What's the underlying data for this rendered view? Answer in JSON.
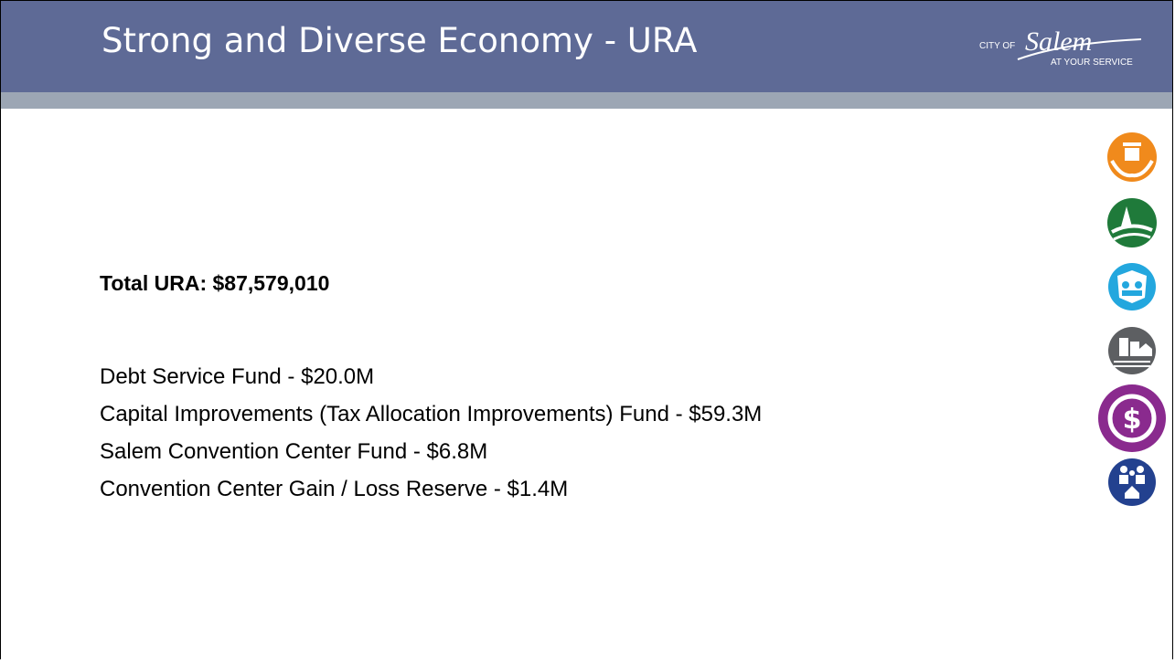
{
  "header": {
    "title": "Strong and Diverse Economy - URA"
  },
  "logo": {
    "prefix": "CITY OF",
    "name": "Salem",
    "tagline": "AT YOUR SERVICE"
  },
  "body": {
    "total": "Total URA: $87,579,010",
    "items": [
      "Debt Service Fund - $20.0M",
      "Capital Improvements (Tax Allocation Improvements) Fund - $59.3M",
      "Salem Convention Center Fund - $6.8M",
      "Convention Center Gain / Loss Reserve - $1.4M"
    ]
  }
}
